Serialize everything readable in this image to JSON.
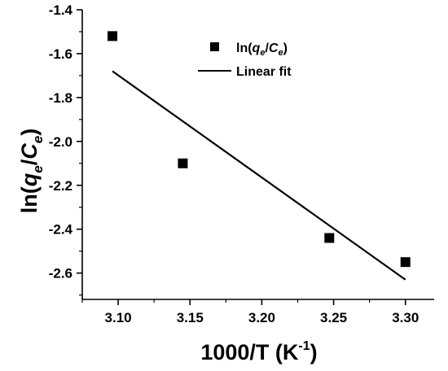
{
  "chart_data": {
    "type": "scatter",
    "xlabel": {
      "main": "1000/T (K",
      "sup": "-1",
      "tail": ")"
    },
    "ylabel": {
      "pre": "ln(",
      "q": "q",
      "q_sub": "e",
      "slash": "/",
      "c": "C",
      "c_sub": "e",
      "post": ")"
    },
    "xlim": [
      3.075,
      3.32
    ],
    "ylim": [
      -2.72,
      -1.4
    ],
    "x_ticks": [
      3.1,
      3.15,
      3.2,
      3.25,
      3.3
    ],
    "y_ticks": [
      -1.4,
      -1.6,
      -1.8,
      -2.0,
      -2.2,
      -2.4,
      -2.6
    ],
    "x_tick_labels": [
      "3.10",
      "3.15",
      "3.20",
      "3.25",
      "3.30"
    ],
    "y_tick_labels": [
      "-1.4",
      "-1.6",
      "-1.8",
      "-2.0",
      "-2.2",
      "-2.4",
      "-2.6"
    ],
    "grid": false,
    "legend_position": "top-right",
    "series": [
      {
        "name": "ln(qe/Ce)",
        "kind": "scatter",
        "marker": "square",
        "color": "#000000",
        "x": [
          3.096,
          3.145,
          3.247,
          3.3
        ],
        "y": [
          -1.52,
          -2.1,
          -2.44,
          -2.55
        ]
      },
      {
        "name": "Linear fit",
        "kind": "line",
        "color": "#000000",
        "x": [
          3.096,
          3.3
        ],
        "y": [
          -1.68,
          -2.63
        ]
      }
    ],
    "legend": {
      "scatter": {
        "pre": "ln(",
        "q": "q",
        "q_sub": "e",
        "slash": "/",
        "c": "C",
        "c_sub": "e",
        "post": ")"
      },
      "line": "Linear fit"
    }
  }
}
